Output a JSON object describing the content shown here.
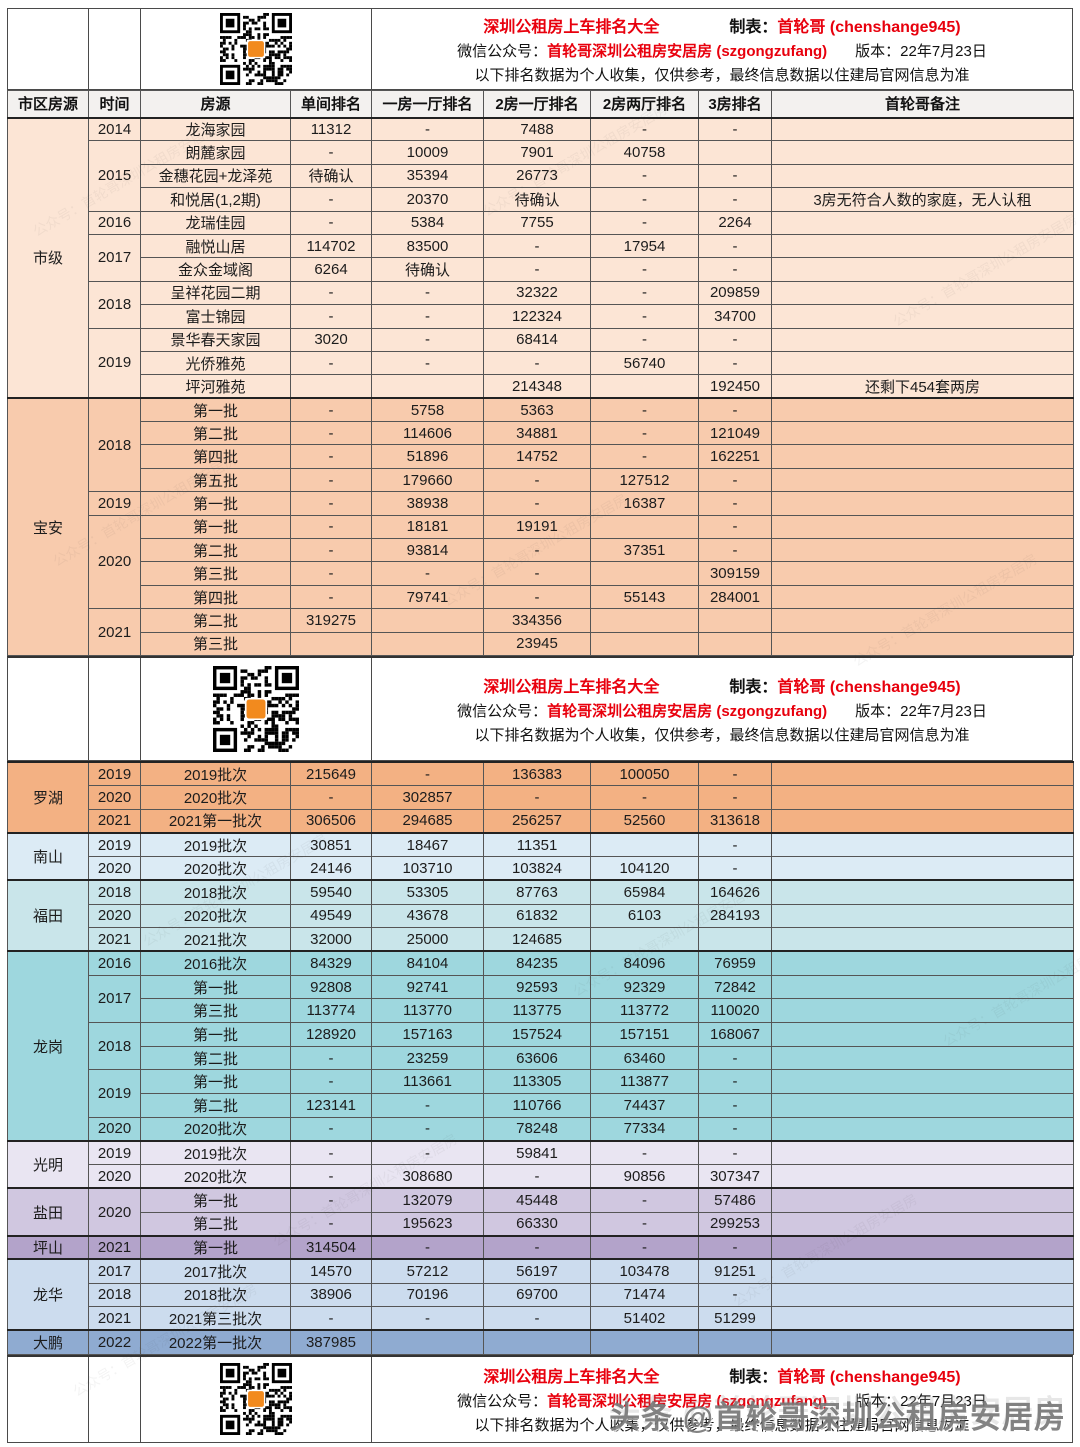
{
  "meta": {
    "title": "深圳公租房上车排名大全",
    "maker_label": "制表：",
    "maker_name": "首轮哥 (chenshange945)",
    "wechat_label": "微信公众号：",
    "wechat_name": "首轮哥深圳公租房安居房 (szgongzufang)",
    "version": "版本：22年7月23日",
    "disclaimer": "以下排名数据为个人收集，仅供参考，最终信息数据以住建局官网信息为准",
    "accent_red": "#e8000d",
    "qr_logo_color": "#f28a1e"
  },
  "columns": [
    "市区房源",
    "时间",
    "房源",
    "单间排名",
    "一房一厅排名",
    "2房一厅排名",
    "2房两厅排名",
    "3房排名",
    "首轮哥备注"
  ],
  "tables": [
    {
      "sections": [
        {
          "district": "市级",
          "color": "#fce5d5",
          "groups": [
            {
              "time": "2014",
              "rows": [
                [
                  "龙海家园",
                  "11312",
                  "-",
                  "7488",
                  "-",
                  "-",
                  ""
                ]
              ]
            },
            {
              "time": "2015",
              "rows": [
                [
                  "朗麓家园",
                  "-",
                  "10009",
                  "7901",
                  "40758",
                  "",
                  ""
                ],
                [
                  "金穗花园+龙泽苑",
                  "待确认",
                  "35394",
                  "26773",
                  "-",
                  "-",
                  ""
                ],
                [
                  "和悦居(1,2期)",
                  "-",
                  "20370",
                  "待确认",
                  "-",
                  "-",
                  "3房无符合人数的家庭，无人认租"
                ]
              ]
            },
            {
              "time": "2016",
              "rows": [
                [
                  "龙瑞佳园",
                  "-",
                  "5384",
                  "7755",
                  "-",
                  "2264",
                  ""
                ]
              ]
            },
            {
              "time": "2017",
              "rows": [
                [
                  "融悦山居",
                  "114702",
                  "83500",
                  "-",
                  "17954",
                  "-",
                  ""
                ],
                [
                  "金众金域阁",
                  "6264",
                  "待确认",
                  "-",
                  "-",
                  "-",
                  ""
                ]
              ]
            },
            {
              "time": "2018",
              "rows": [
                [
                  "呈祥花园二期",
                  "-",
                  "-",
                  "32322",
                  "-",
                  "209859",
                  ""
                ],
                [
                  "富士锦园",
                  "-",
                  "-",
                  "122324",
                  "-",
                  "34700",
                  ""
                ]
              ]
            },
            {
              "time": "2019",
              "rows": [
                [
                  "景华春天家园",
                  "3020",
                  "-",
                  "68414",
                  "-",
                  "-",
                  ""
                ],
                [
                  "光侨雅苑",
                  "-",
                  "-",
                  "-",
                  "56740",
                  "-",
                  ""
                ],
                [
                  "坪河雅苑",
                  "",
                  "",
                  "214348",
                  "",
                  "192450",
                  "还剩下454套两房"
                ]
              ]
            }
          ]
        },
        {
          "district": "宝安",
          "color": "#f8cbad",
          "groups": [
            {
              "time": "2018",
              "rows": [
                [
                  "第一批",
                  "-",
                  "5758",
                  "5363",
                  "-",
                  "-",
                  ""
                ],
                [
                  "第二批",
                  "-",
                  "114606",
                  "34881",
                  "-",
                  "121049",
                  ""
                ],
                [
                  "第四批",
                  "-",
                  "51896",
                  "14752",
                  "-",
                  "162251",
                  ""
                ],
                [
                  "第五批",
                  "-",
                  "179660",
                  "-",
                  "127512",
                  "-",
                  ""
                ]
              ]
            },
            {
              "time": "2019",
              "rows": [
                [
                  "第一批",
                  "-",
                  "38938",
                  "-",
                  "16387",
                  "-",
                  ""
                ]
              ]
            },
            {
              "time": "2020",
              "rows": [
                [
                  "第一批",
                  "-",
                  "18181",
                  "19191",
                  "",
                  "-",
                  ""
                ],
                [
                  "第二批",
                  "-",
                  "93814",
                  "-",
                  "37351",
                  "-",
                  ""
                ],
                [
                  "第三批",
                  "-",
                  "-",
                  "-",
                  "",
                  "309159",
                  ""
                ],
                [
                  "第四批",
                  "-",
                  "79741",
                  "-",
                  "55143",
                  "284001",
                  ""
                ]
              ]
            },
            {
              "time": "2021",
              "rows": [
                [
                  "第二批",
                  "319275",
                  "",
                  "334356",
                  "",
                  "",
                  ""
                ],
                [
                  "第三批",
                  "",
                  "",
                  "23945",
                  "",
                  "",
                  ""
                ]
              ]
            }
          ]
        }
      ]
    },
    {
      "sections": [
        {
          "district": "罗湖",
          "color": "#f3b183",
          "groups": [
            {
              "time": "2019",
              "rows": [
                [
                  "2019批次",
                  "215649",
                  "-",
                  "136383",
                  "100050",
                  "-",
                  ""
                ]
              ]
            },
            {
              "time": "2020",
              "rows": [
                [
                  "2020批次",
                  "-",
                  "302857",
                  "-",
                  "-",
                  "-",
                  ""
                ]
              ]
            },
            {
              "time": "2021",
              "rows": [
                [
                  "2021第一批次",
                  "306506",
                  "294685",
                  "256257",
                  "52560",
                  "313618",
                  ""
                ]
              ]
            }
          ]
        },
        {
          "district": "南山",
          "color": "#dcebf5",
          "groups": [
            {
              "time": "2019",
              "rows": [
                [
                  "2019批次",
                  "30851",
                  "18467",
                  "11351",
                  "",
                  "-",
                  ""
                ]
              ]
            },
            {
              "time": "2020",
              "rows": [
                [
                  "2020批次",
                  "24146",
                  "103710",
                  "103824",
                  "104120",
                  "-",
                  ""
                ]
              ]
            }
          ]
        },
        {
          "district": "福田",
          "color": "#c9e5ea",
          "groups": [
            {
              "time": "2018",
              "rows": [
                [
                  "2018批次",
                  "59540",
                  "53305",
                  "87763",
                  "65984",
                  "164626",
                  ""
                ]
              ]
            },
            {
              "time": "2020",
              "rows": [
                [
                  "2020批次",
                  "49549",
                  "43678",
                  "61832",
                  "6103",
                  "284193",
                  ""
                ]
              ]
            },
            {
              "time": "2021",
              "rows": [
                [
                  "2021批次",
                  "32000",
                  "25000",
                  "124685",
                  "",
                  "",
                  ""
                ]
              ]
            }
          ]
        },
        {
          "district": "龙岗",
          "color": "#9ed7de",
          "groups": [
            {
              "time": "2016",
              "rows": [
                [
                  "2016批次",
                  "84329",
                  "84104",
                  "84235",
                  "84096",
                  "76959",
                  ""
                ]
              ]
            },
            {
              "time": "2017",
              "rows": [
                [
                  "第一批",
                  "92808",
                  "92741",
                  "92593",
                  "92329",
                  "72842",
                  ""
                ],
                [
                  "第三批",
                  "113774",
                  "113770",
                  "113775",
                  "113772",
                  "110020",
                  ""
                ]
              ]
            },
            {
              "time": "2018",
              "rows": [
                [
                  "第一批",
                  "128920",
                  "157163",
                  "157524",
                  "157151",
                  "168067",
                  ""
                ],
                [
                  "第二批",
                  "-",
                  "23259",
                  "63606",
                  "63460",
                  "-",
                  ""
                ]
              ]
            },
            {
              "time": "2019",
              "rows": [
                [
                  "第一批",
                  "-",
                  "113661",
                  "113305",
                  "113877",
                  "-",
                  ""
                ],
                [
                  "第二批",
                  "123141",
                  "-",
                  "110766",
                  "74437",
                  "-",
                  ""
                ]
              ]
            },
            {
              "time": "2020",
              "rows": [
                [
                  "2020批次",
                  "-",
                  "-",
                  "78248",
                  "77334",
                  "-",
                  ""
                ]
              ]
            }
          ]
        },
        {
          "district": "光明",
          "color": "#e9e5f2",
          "groups": [
            {
              "time": "2019",
              "rows": [
                [
                  "2019批次",
                  "-",
                  "-",
                  "59841",
                  "-",
                  "-",
                  ""
                ]
              ]
            },
            {
              "time": "2020",
              "rows": [
                [
                  "2020批次",
                  "-",
                  "308680",
                  "-",
                  "90856",
                  "307347",
                  ""
                ]
              ]
            }
          ]
        },
        {
          "district": "盐田",
          "color": "#d0c7e0",
          "groups": [
            {
              "time": "2020",
              "rows": [
                [
                  "第一批",
                  "-",
                  "132079",
                  "45448",
                  "-",
                  "57486",
                  ""
                ],
                [
                  "第二批",
                  "-",
                  "195623",
                  "66330",
                  "-",
                  "299253",
                  ""
                ]
              ]
            }
          ]
        },
        {
          "district": "坪山",
          "color": "#b3a3ca",
          "groups": [
            {
              "time": "2021",
              "rows": [
                [
                  "第一批",
                  "314504",
                  "-",
                  "-",
                  "-",
                  "-",
                  ""
                ]
              ]
            }
          ]
        },
        {
          "district": "龙华",
          "color": "#ccdcee",
          "groups": [
            {
              "time": "2017",
              "rows": [
                [
                  "2017批次",
                  "14570",
                  "57212",
                  "56197",
                  "103478",
                  "91251",
                  ""
                ]
              ]
            },
            {
              "time": "2018",
              "rows": [
                [
                  "2018批次",
                  "38906",
                  "70196",
                  "69700",
                  "71474",
                  "-",
                  ""
                ]
              ]
            },
            {
              "time": "2021",
              "rows": [
                [
                  "2021第三批次",
                  "-",
                  "-",
                  "-",
                  "51402",
                  "51299",
                  ""
                ]
              ]
            }
          ]
        },
        {
          "district": "大鹏",
          "color": "#8fabd1",
          "groups": [
            {
              "time": "2022",
              "rows": [
                [
                  "2022第一批次",
                  "387985",
                  "",
                  "",
                  "",
                  "",
                  ""
                ]
              ]
            }
          ]
        }
      ]
    }
  ],
  "watermarks": {
    "toutiao": "头条 @首轮哥深圳公租房安居房",
    "diagonal": "公众号：首轮哥深圳公租房安居房"
  }
}
